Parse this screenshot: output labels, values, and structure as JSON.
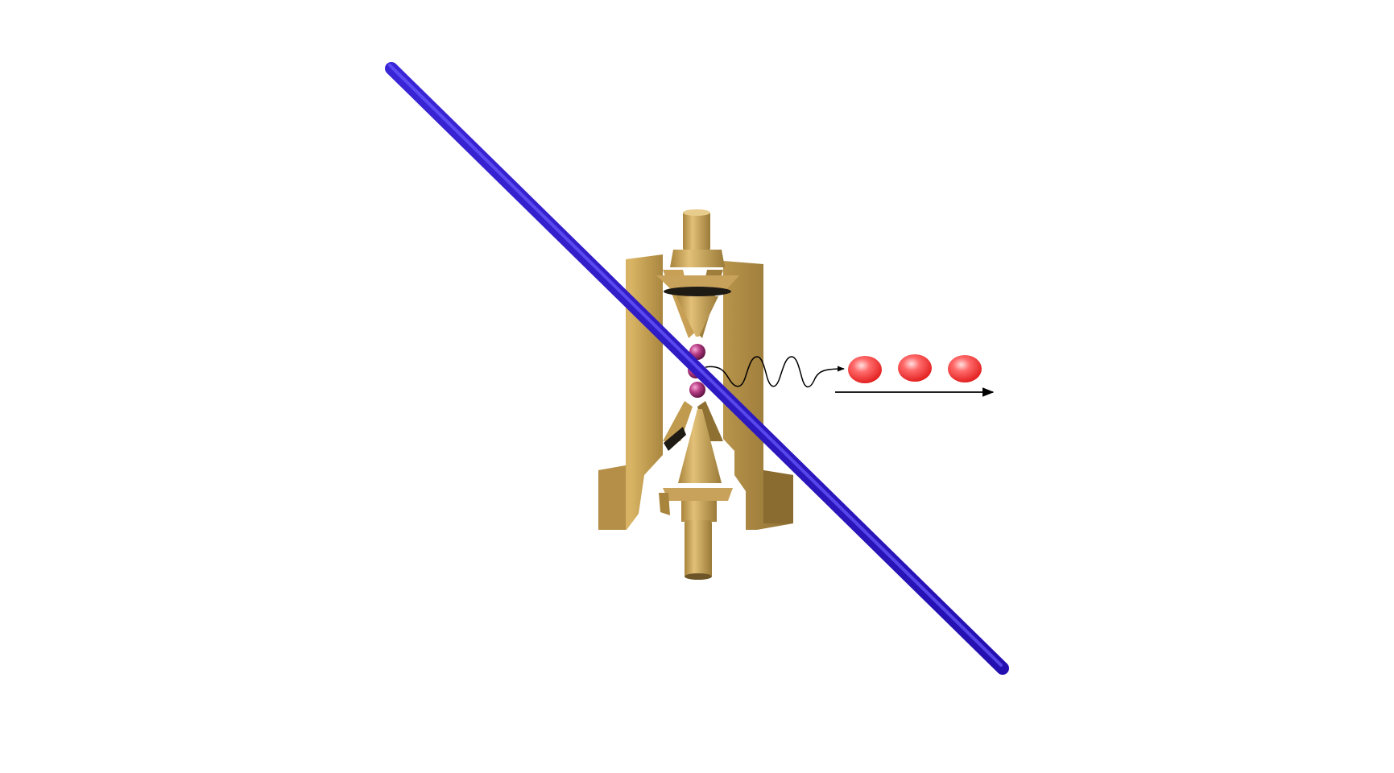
{
  "figure": {
    "background": "#ffffff"
  },
  "colors": {
    "laser_beam": "#2b16c4",
    "laser_beam_highlight": "#6a5cff",
    "trap_gold_light": "#d9b464",
    "trap_gold_mid": "#c09a4e",
    "trap_gold_dark": "#8f7033",
    "trap_shadow": "#1e1a14",
    "ion": "#9b2e6e",
    "ion_highlight": "#f08cc4",
    "photon_wave": "#000000",
    "output_photon": "#ff2a2a",
    "output_photon_highlight": "#ffd6d6",
    "arrow": "#000000"
  },
  "elements": {
    "laser_beam": "laser-beam",
    "ion_trap": "ion-trap",
    "ions": [
      "ion-1",
      "ion-2",
      "ion-3"
    ],
    "emitted_photon": "emitted-photon-wave",
    "photon_stream": [
      "output-photon-1",
      "output-photon-2",
      "output-photon-3"
    ],
    "propagation_arrow": "propagation-arrow"
  }
}
